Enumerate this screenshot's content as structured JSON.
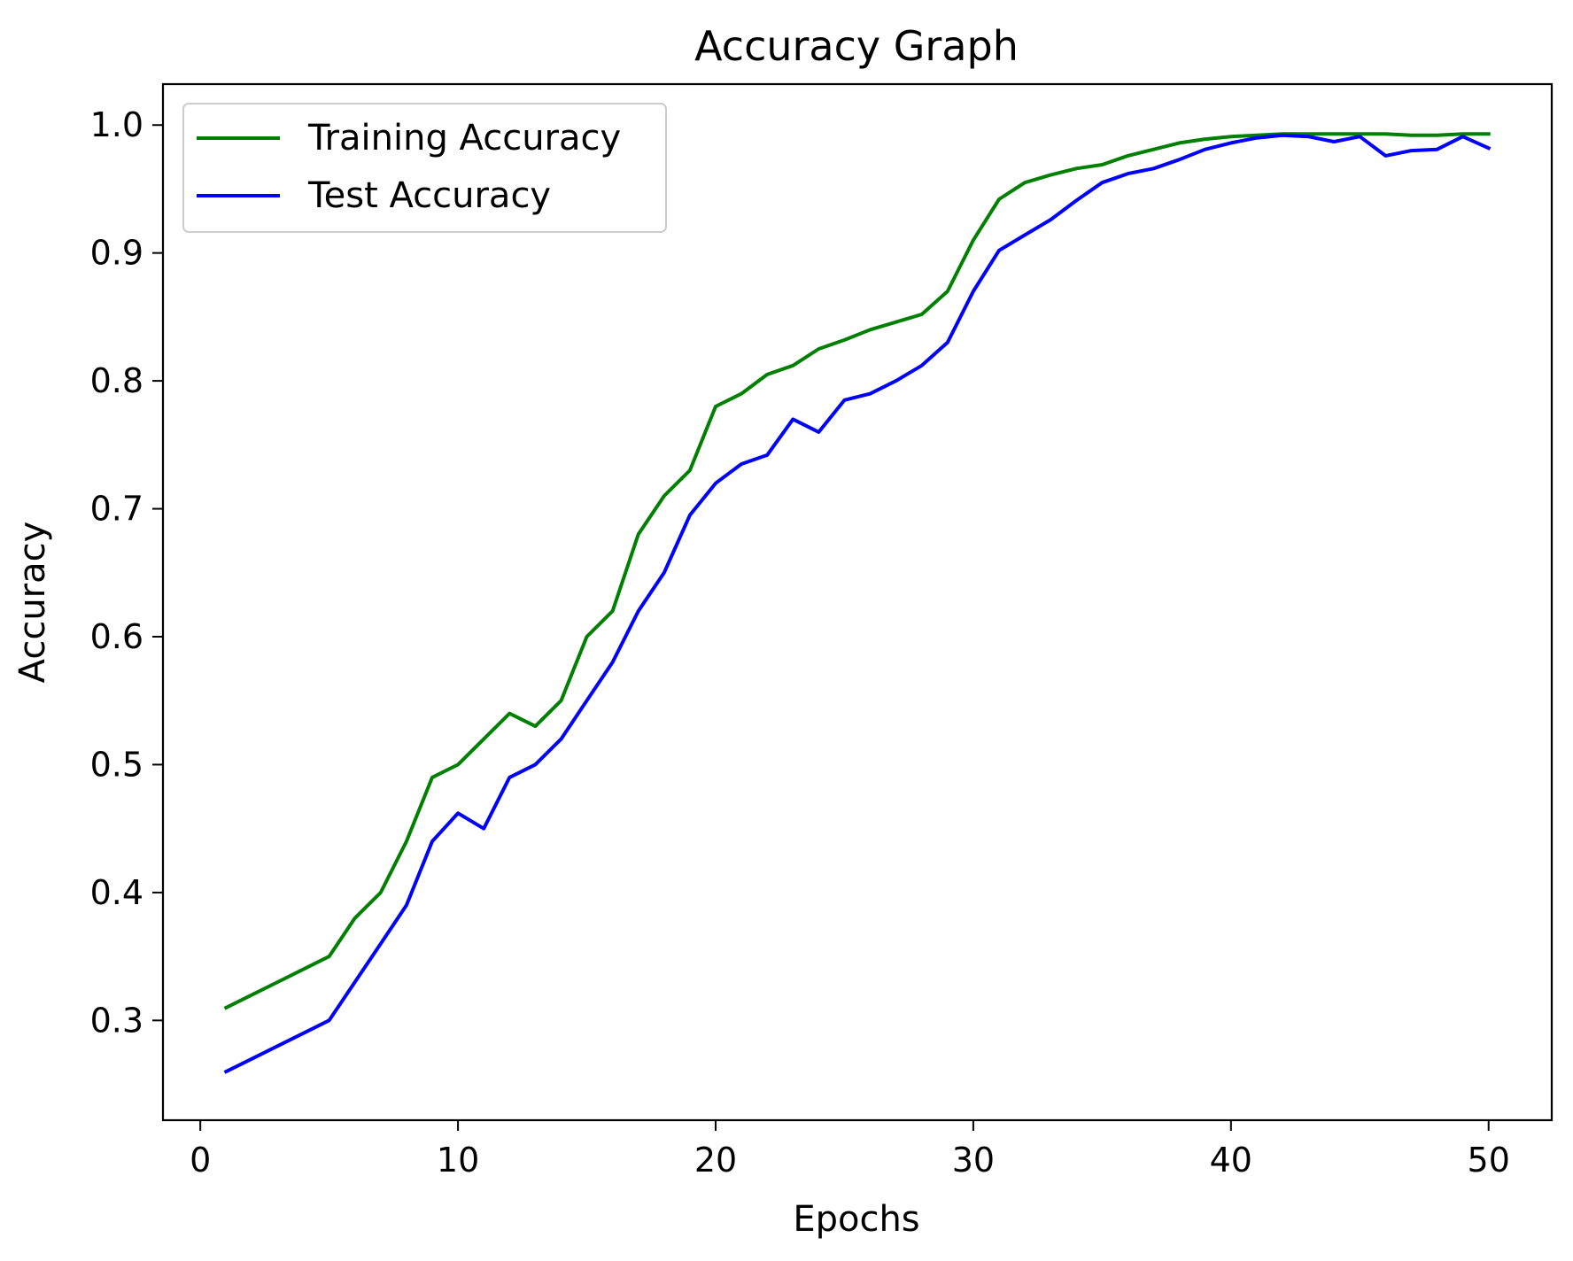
{
  "chart_data": {
    "type": "line",
    "title": "Accuracy Graph",
    "xlabel": "Epochs",
    "ylabel": "Accuracy",
    "xlim": [
      -1.45,
      52.45
    ],
    "ylim": [
      0.222,
      1.032
    ],
    "xticks": [
      0,
      10,
      20,
      30,
      40,
      50
    ],
    "xtick_labels": [
      "0",
      "10",
      "20",
      "30",
      "40",
      "50"
    ],
    "yticks": [
      0.3,
      0.4,
      0.5,
      0.6,
      0.7,
      0.8,
      0.9,
      1.0
    ],
    "ytick_labels": [
      "0.3",
      "0.4",
      "0.5",
      "0.6",
      "0.7",
      "0.8",
      "0.9",
      "1.0"
    ],
    "grid": false,
    "legend_position": "upper-left",
    "x": [
      1,
      2,
      3,
      4,
      5,
      6,
      7,
      8,
      9,
      10,
      11,
      12,
      13,
      14,
      15,
      16,
      17,
      18,
      19,
      20,
      21,
      22,
      23,
      24,
      25,
      26,
      27,
      28,
      29,
      30,
      31,
      32,
      33,
      34,
      35,
      36,
      37,
      38,
      39,
      40,
      41,
      42,
      43,
      44,
      45,
      46,
      47,
      48,
      49,
      50
    ],
    "series": [
      {
        "name": "Training Accuracy",
        "color": "#008000",
        "values": [
          0.31,
          0.32,
          0.33,
          0.34,
          0.35,
          0.38,
          0.4,
          0.44,
          0.49,
          0.5,
          0.52,
          0.54,
          0.53,
          0.55,
          0.6,
          0.62,
          0.68,
          0.71,
          0.73,
          0.78,
          0.79,
          0.805,
          0.812,
          0.825,
          0.832,
          0.84,
          0.846,
          0.852,
          0.87,
          0.91,
          0.942,
          0.955,
          0.961,
          0.966,
          0.969,
          0.976,
          0.981,
          0.986,
          0.989,
          0.991,
          0.992,
          0.993,
          0.993,
          0.993,
          0.993,
          0.993,
          0.992,
          0.992,
          0.993,
          0.993
        ]
      },
      {
        "name": "Test Accuracy",
        "color": "#0000ff",
        "values": [
          0.26,
          0.27,
          0.28,
          0.29,
          0.3,
          0.33,
          0.36,
          0.39,
          0.44,
          0.462,
          0.45,
          0.49,
          0.5,
          0.52,
          0.55,
          0.58,
          0.62,
          0.65,
          0.695,
          0.72,
          0.735,
          0.742,
          0.77,
          0.76,
          0.785,
          0.79,
          0.8,
          0.812,
          0.83,
          0.87,
          0.902,
          0.914,
          0.926,
          0.941,
          0.955,
          0.962,
          0.966,
          0.973,
          0.981,
          0.986,
          0.99,
          0.992,
          0.991,
          0.987,
          0.991,
          0.976,
          0.98,
          0.981,
          0.991,
          0.982
        ]
      }
    ]
  }
}
